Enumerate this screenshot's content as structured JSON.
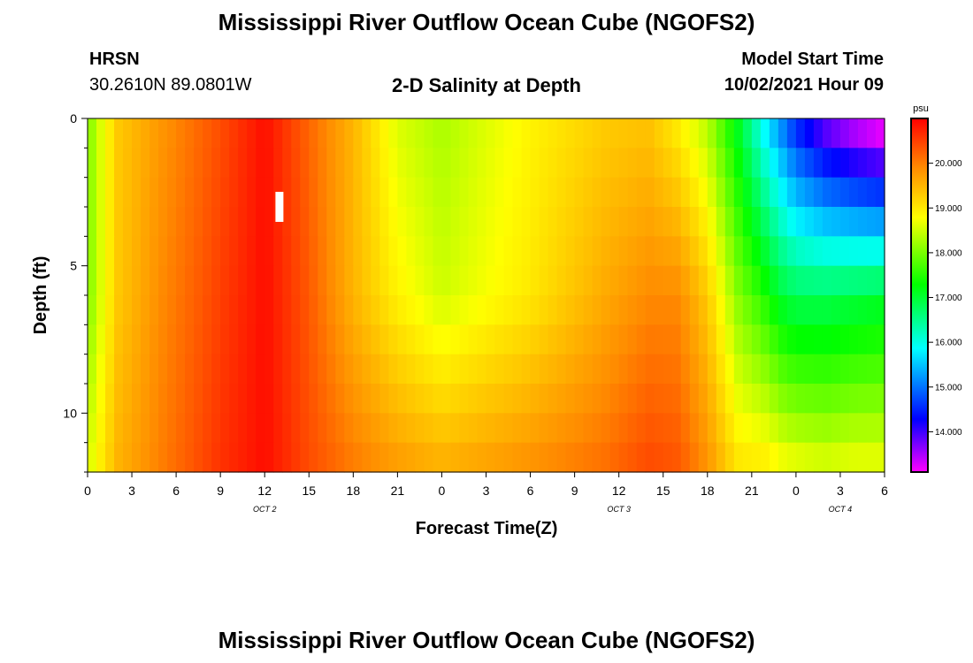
{
  "header": {
    "title": "Mississippi River Outflow Ocean Cube (NGOFS2)",
    "station_name": "HRSN",
    "station_coords": "30.2610N  89.0801W",
    "subtitle": "2-D Salinity at Depth",
    "model_start_label": "Model Start Time",
    "model_start_value": "10/02/2021 Hour 09"
  },
  "footer": {
    "title": "Mississippi River Outflow Ocean Cube (NGOFS2)"
  },
  "chart_data": {
    "type": "heatmap",
    "title": "2-D Salinity at Depth",
    "xlabel": "Forecast Time(Z)",
    "ylabel": "Depth (ft)",
    "x_hours_range": [
      0,
      54
    ],
    "ylim": [
      0,
      12
    ],
    "y_inverted": true,
    "x_ticks": [
      "0",
      "3",
      "6",
      "9",
      "12",
      "15",
      "18",
      "21",
      "0",
      "3",
      "6",
      "9",
      "12",
      "15",
      "18",
      "21",
      "0",
      "3",
      "6"
    ],
    "y_ticks": [
      "0",
      "5",
      "10"
    ],
    "day_labels": [
      {
        "label": "OCT 2",
        "hour": 12
      },
      {
        "label": "OCT 3",
        "hour": 36
      },
      {
        "label": "OCT 4",
        "hour": 51
      }
    ],
    "depth_levels_ft": [
      0.5,
      1.5,
      2.5,
      3.5,
      4.5,
      5.5,
      6.5,
      7.5,
      8.5,
      9.5,
      10.5,
      11.5
    ],
    "colorbar": {
      "unit": "psu",
      "min": 13.1,
      "max": 21.0,
      "ticks": [
        "14.000",
        "15.000",
        "16.000",
        "17.000",
        "18.000",
        "19.000",
        "20.000"
      ],
      "colors": [
        "#ff00ff",
        "#0000ff",
        "#00ffff",
        "#00ff00",
        "#ffff00",
        "#ff8c00",
        "#ff0000"
      ]
    },
    "marker": {
      "label": "I",
      "hour": 13,
      "depth_ft": 3
    },
    "salinity_profiles": {
      "hours": [
        0,
        2,
        5,
        9,
        12,
        15,
        18,
        21,
        24,
        30,
        35,
        38,
        40,
        42,
        44,
        46,
        47,
        48,
        50,
        52,
        54
      ],
      "surface": [
        18.0,
        19.3,
        19.8,
        20.4,
        20.9,
        20.2,
        19.5,
        18.6,
        18.3,
        18.9,
        19.3,
        19.4,
        19.0,
        18.4,
        17.2,
        15.8,
        15.2,
        14.6,
        13.9,
        13.5,
        13.2
      ],
      "mid": [
        18.0,
        19.3,
        19.9,
        20.5,
        20.9,
        20.3,
        19.5,
        18.9,
        18.5,
        19.0,
        19.6,
        19.9,
        19.9,
        19.3,
        18.1,
        17.4,
        17.0,
        16.8,
        16.8,
        16.9,
        17.0
      ],
      "bottom": [
        18.5,
        19.5,
        20.0,
        20.6,
        20.9,
        20.4,
        20.0,
        19.7,
        19.5,
        19.8,
        20.1,
        20.4,
        20.3,
        19.8,
        19.0,
        18.9,
        18.7,
        18.6,
        18.5,
        18.6,
        18.6
      ]
    }
  }
}
